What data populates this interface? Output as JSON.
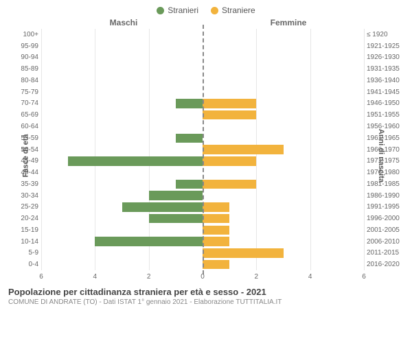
{
  "legend": {
    "male": "Stranieri",
    "female": "Straniere"
  },
  "colors": {
    "male": "#6a9a5a",
    "female": "#f2b33d",
    "grid": "#e6e6e6",
    "zero": "#888888",
    "text": "#666666"
  },
  "headers": {
    "left": "Maschi",
    "right": "Femmine"
  },
  "y_left_title": "Fasce di età",
  "y_right_title": "Anni di nascita",
  "xlim": 6,
  "xticks_left": [
    6,
    4,
    2,
    0
  ],
  "xticks_right": [
    0,
    2,
    4,
    6
  ],
  "rows": [
    {
      "age": "100+",
      "birth": "≤ 1920",
      "m": 0,
      "f": 0
    },
    {
      "age": "95-99",
      "birth": "1921-1925",
      "m": 0,
      "f": 0
    },
    {
      "age": "90-94",
      "birth": "1926-1930",
      "m": 0,
      "f": 0
    },
    {
      "age": "85-89",
      "birth": "1931-1935",
      "m": 0,
      "f": 0
    },
    {
      "age": "80-84",
      "birth": "1936-1940",
      "m": 0,
      "f": 0
    },
    {
      "age": "75-79",
      "birth": "1941-1945",
      "m": 0,
      "f": 0
    },
    {
      "age": "70-74",
      "birth": "1946-1950",
      "m": 1,
      "f": 2
    },
    {
      "age": "65-69",
      "birth": "1951-1955",
      "m": 0,
      "f": 2
    },
    {
      "age": "60-64",
      "birth": "1956-1960",
      "m": 0,
      "f": 0
    },
    {
      "age": "55-59",
      "birth": "1961-1965",
      "m": 1,
      "f": 0
    },
    {
      "age": "50-54",
      "birth": "1966-1970",
      "m": 0,
      "f": 3
    },
    {
      "age": "45-49",
      "birth": "1971-1975",
      "m": 5,
      "f": 2
    },
    {
      "age": "40-44",
      "birth": "1976-1980",
      "m": 0,
      "f": 0
    },
    {
      "age": "35-39",
      "birth": "1981-1985",
      "m": 1,
      "f": 2
    },
    {
      "age": "30-34",
      "birth": "1986-1990",
      "m": 2,
      "f": 0
    },
    {
      "age": "25-29",
      "birth": "1991-1995",
      "m": 3,
      "f": 1
    },
    {
      "age": "20-24",
      "birth": "1996-2000",
      "m": 2,
      "f": 1
    },
    {
      "age": "15-19",
      "birth": "2001-2005",
      "m": 0,
      "f": 1
    },
    {
      "age": "10-14",
      "birth": "2006-2010",
      "m": 4,
      "f": 1
    },
    {
      "age": "5-9",
      "birth": "2011-2015",
      "m": 0,
      "f": 3
    },
    {
      "age": "0-4",
      "birth": "2016-2020",
      "m": 0,
      "f": 1
    }
  ],
  "title": "Popolazione per cittadinanza straniera per età e sesso - 2021",
  "subtitle": "COMUNE DI ANDRATE (TO) - Dati ISTAT 1° gennaio 2021 - Elaborazione TUTTITALIA.IT"
}
